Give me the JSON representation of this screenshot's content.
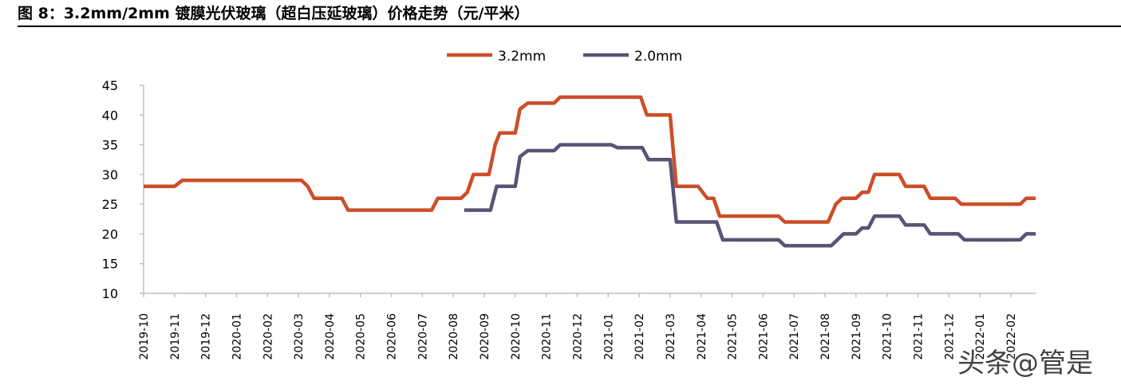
{
  "title": "图 8：3.2mm/2mm 镀膜光伏玻璃（超白压延玻璃）价格走势（元/平米）",
  "watermark": "头条@管是",
  "colors": {
    "s32": "#cc4e28",
    "s20": "#5b5275",
    "axis": "#bfbfbf"
  },
  "chart_data": {
    "type": "line",
    "ylim": [
      10,
      45
    ],
    "yticks": [
      10,
      15,
      20,
      25,
      30,
      35,
      40,
      45
    ],
    "x_range": [
      0,
      28.8
    ],
    "categories": [
      "2019-10",
      "2019-11",
      "2019-12",
      "2020-01",
      "2020-02",
      "2020-03",
      "2020-04",
      "2020-05",
      "2020-06",
      "2020-07",
      "2020-08",
      "2020-09",
      "2020-10",
      "2020-11",
      "2020-12",
      "2021-01",
      "2021-02",
      "2021-03",
      "2021-04",
      "2021-05",
      "2021-06",
      "2021-07",
      "2021-08",
      "2021-09",
      "2021-10",
      "2021-11",
      "2021-12",
      "2022-01",
      "2022-02"
    ],
    "legend": {
      "placement": "top-center"
    },
    "series": [
      {
        "name": "3.2mm",
        "points": [
          [
            0,
            28
          ],
          [
            1,
            28
          ],
          [
            1.25,
            29
          ],
          [
            2,
            29
          ],
          [
            3,
            29
          ],
          [
            4,
            29
          ],
          [
            5,
            29
          ],
          [
            5.1,
            29
          ],
          [
            5.3,
            28
          ],
          [
            5.5,
            26
          ],
          [
            6,
            26
          ],
          [
            6.4,
            26
          ],
          [
            6.6,
            24
          ],
          [
            7,
            24
          ],
          [
            8,
            24
          ],
          [
            9,
            24
          ],
          [
            9.3,
            24
          ],
          [
            9.5,
            26
          ],
          [
            10,
            26
          ],
          [
            10.25,
            26
          ],
          [
            10.45,
            27
          ],
          [
            10.65,
            30
          ],
          [
            11,
            30
          ],
          [
            11.15,
            30
          ],
          [
            11.35,
            35
          ],
          [
            11.5,
            37
          ],
          [
            12,
            37
          ],
          [
            12.15,
            41
          ],
          [
            12.4,
            42
          ],
          [
            13,
            42
          ],
          [
            13.25,
            42
          ],
          [
            13.45,
            43
          ],
          [
            14,
            43
          ],
          [
            15,
            43
          ],
          [
            16,
            43
          ],
          [
            16.05,
            43
          ],
          [
            16.25,
            40
          ],
          [
            16.8,
            40
          ],
          [
            17,
            40
          ],
          [
            17.2,
            28
          ],
          [
            17.9,
            28
          ],
          [
            18.2,
            26
          ],
          [
            18.4,
            26
          ],
          [
            18.6,
            23
          ],
          [
            19,
            23
          ],
          [
            20,
            23
          ],
          [
            20.5,
            23
          ],
          [
            20.7,
            22
          ],
          [
            21,
            22
          ],
          [
            22,
            22
          ],
          [
            22.1,
            22
          ],
          [
            22.35,
            25
          ],
          [
            22.55,
            26
          ],
          [
            23,
            26
          ],
          [
            23.2,
            27
          ],
          [
            23.4,
            27
          ],
          [
            23.6,
            30
          ],
          [
            24,
            30
          ],
          [
            24.4,
            30
          ],
          [
            24.6,
            28
          ],
          [
            25,
            28
          ],
          [
            25.2,
            28
          ],
          [
            25.4,
            26
          ],
          [
            26,
            26
          ],
          [
            26.2,
            26
          ],
          [
            26.4,
            25
          ],
          [
            27,
            25
          ],
          [
            28,
            25
          ],
          [
            28.3,
            25
          ],
          [
            28.5,
            26
          ],
          [
            28.8,
            26
          ]
        ]
      },
      {
        "name": "2.0mm",
        "points": [
          [
            10.35,
            24
          ],
          [
            11,
            24
          ],
          [
            11.2,
            24
          ],
          [
            11.4,
            28
          ],
          [
            12,
            28
          ],
          [
            12.15,
            33
          ],
          [
            12.4,
            34
          ],
          [
            13,
            34
          ],
          [
            13.25,
            34
          ],
          [
            13.45,
            35
          ],
          [
            14,
            35
          ],
          [
            15,
            35
          ],
          [
            15.1,
            35
          ],
          [
            15.3,
            34.5
          ],
          [
            16,
            34.5
          ],
          [
            16.1,
            34.5
          ],
          [
            16.3,
            32.5
          ],
          [
            16.8,
            32.5
          ],
          [
            17,
            32.5
          ],
          [
            17.2,
            22
          ],
          [
            18,
            22
          ],
          [
            18.5,
            22
          ],
          [
            18.7,
            19
          ],
          [
            19,
            19
          ],
          [
            20,
            19
          ],
          [
            20.5,
            19
          ],
          [
            20.7,
            18
          ],
          [
            21,
            18
          ],
          [
            22,
            18
          ],
          [
            22.2,
            18
          ],
          [
            22.6,
            20
          ],
          [
            23,
            20
          ],
          [
            23.2,
            21
          ],
          [
            23.4,
            21
          ],
          [
            23.6,
            23
          ],
          [
            24,
            23
          ],
          [
            24.4,
            23
          ],
          [
            24.6,
            21.5
          ],
          [
            25,
            21.5
          ],
          [
            25.2,
            21.5
          ],
          [
            25.4,
            20
          ],
          [
            26,
            20
          ],
          [
            26.3,
            20
          ],
          [
            26.5,
            19
          ],
          [
            27,
            19
          ],
          [
            28,
            19
          ],
          [
            28.3,
            19
          ],
          [
            28.5,
            20
          ],
          [
            28.8,
            20
          ]
        ]
      }
    ]
  }
}
